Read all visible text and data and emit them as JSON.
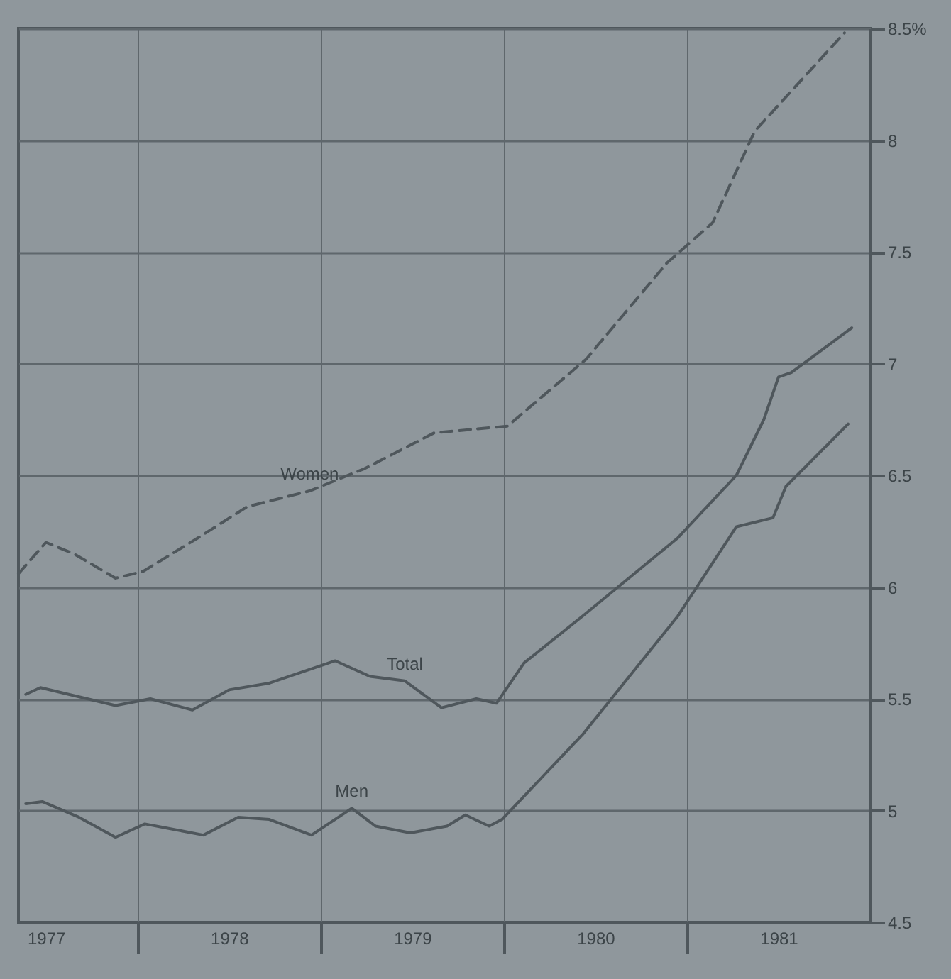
{
  "chart_data": {
    "type": "line",
    "xlim": [
      1977.35,
      1982.0
    ],
    "xticks": [
      {
        "value": 1978,
        "label": null
      },
      {
        "value": 1979,
        "label": null
      },
      {
        "value": 1980,
        "label": null
      },
      {
        "value": 1981,
        "label": null
      },
      {
        "value": 1977.5,
        "label": "1977"
      },
      {
        "value": 1978.5,
        "label": "1978"
      },
      {
        "value": 1979.5,
        "label": "1979"
      },
      {
        "value": 1980.5,
        "label": "1980"
      },
      {
        "value": 1981.5,
        "label": "1981"
      }
    ],
    "ylim": [
      4.5,
      8.5
    ],
    "yticks": [
      4.5,
      5.0,
      5.5,
      6.0,
      6.5,
      7.0,
      7.5,
      8.0,
      {
        "value": 8.5,
        "label": "8.5%"
      }
    ],
    "grid": true,
    "series": [
      {
        "name": "Women",
        "color": "#4f575c",
        "line_style": "dashed",
        "x": [
          1977.35,
          1977.5,
          1977.65,
          1977.88,
          1978.03,
          1978.33,
          1978.6,
          1978.94,
          1979.24,
          1979.62,
          1980.02,
          1980.45,
          1980.89,
          1981.14,
          1981.37,
          1981.86
        ],
        "values": [
          6.06,
          6.2,
          6.15,
          6.04,
          6.07,
          6.22,
          6.36,
          6.43,
          6.53,
          6.69,
          6.72,
          7.02,
          7.45,
          7.63,
          8.04,
          8.48
        ]
      },
      {
        "name": "Total",
        "color": "#4f575c",
        "line_style": "solid",
        "x": [
          1977.39,
          1977.47,
          1977.88,
          1978.07,
          1978.3,
          1978.5,
          1978.72,
          1979.08,
          1979.27,
          1979.46,
          1979.66,
          1979.85,
          1979.96,
          1980.11,
          1980.43,
          1980.95,
          1981.27,
          1981.42,
          1981.5,
          1981.57,
          1981.9
        ],
        "values": [
          5.52,
          5.55,
          5.47,
          5.5,
          5.45,
          5.54,
          5.57,
          5.67,
          5.6,
          5.58,
          5.46,
          5.5,
          5.48,
          5.66,
          5.87,
          6.22,
          6.5,
          6.75,
          6.94,
          6.96,
          7.16
        ]
      },
      {
        "name": "Men",
        "color": "#4f575c",
        "line_style": "solid",
        "x": [
          1977.39,
          1977.48,
          1977.68,
          1977.88,
          1978.04,
          1978.17,
          1978.36,
          1978.55,
          1978.72,
          1978.95,
          1979.17,
          1979.3,
          1979.49,
          1979.69,
          1979.79,
          1979.92,
          1979.99,
          1980.43,
          1980.95,
          1981.27,
          1981.47,
          1981.54,
          1981.88
        ],
        "values": [
          5.03,
          5.04,
          4.97,
          4.88,
          4.94,
          4.92,
          4.89,
          4.97,
          4.96,
          4.89,
          5.01,
          4.93,
          4.9,
          4.93,
          4.98,
          4.93,
          4.96,
          5.34,
          5.87,
          6.27,
          6.31,
          6.45,
          6.73
        ]
      }
    ]
  }
}
